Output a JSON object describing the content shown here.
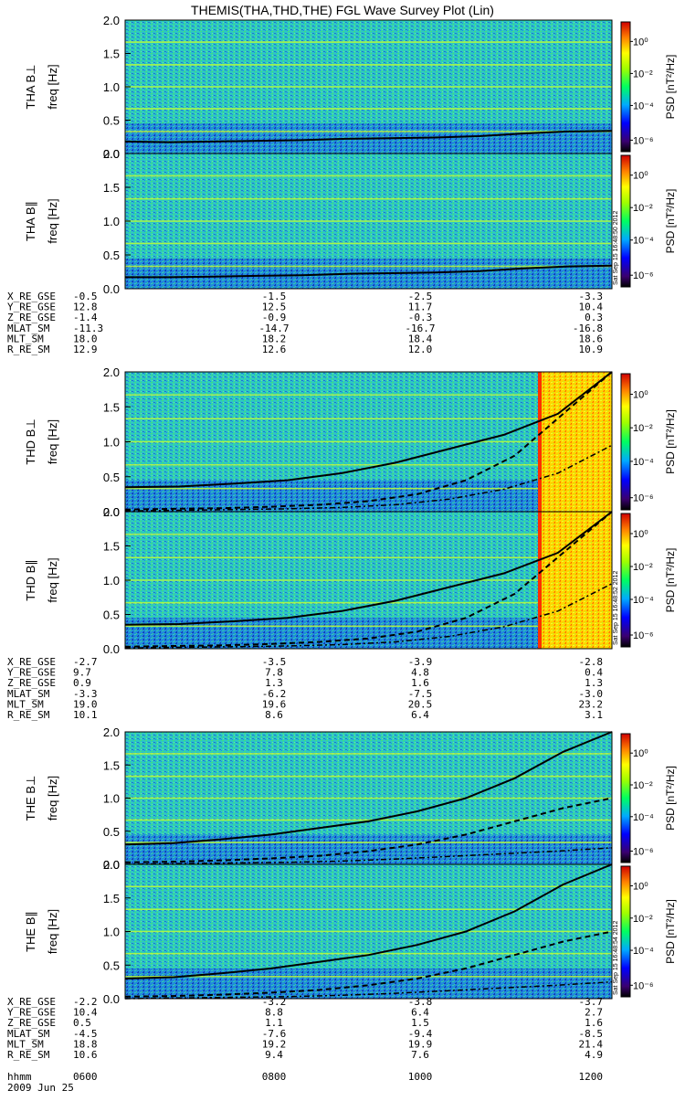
{
  "title": "THEMIS(THA,THD,THE) FGL Wave Survey Plot (Lin)",
  "date_label": "2009 Jun 25",
  "hhmm_label": "hhmm",
  "time_ticks": [
    "0600",
    "0800",
    "1000",
    "1200"
  ],
  "colorbar": {
    "label": "PSD [nT²/Hz]",
    "tick_labels": [
      "10⁰",
      "10⁻²",
      "10⁻⁴",
      "10⁻⁶"
    ]
  },
  "frequency_ticks": [
    "0.0",
    "0.5",
    "1.0",
    "1.5",
    "2.0"
  ],
  "chart_data": [
    {
      "type": "heatmap",
      "probe": "THA",
      "component": "perp",
      "ylabel": "THA B⊥",
      "yunit": "freq [Hz]",
      "ylim": [
        0,
        2.0
      ],
      "line_solid": [
        0.18,
        0.17,
        0.18,
        0.19,
        0.2,
        0.22,
        0.23,
        0.24,
        0.26,
        0.3,
        0.33,
        0.34
      ]
    },
    {
      "type": "heatmap",
      "probe": "THA",
      "component": "par",
      "ylabel": "THA B∥",
      "yunit": "freq [Hz]",
      "ylim": [
        0,
        2.0
      ],
      "timestamp": "Sat Sep 15 16:48:50 2012",
      "line_solid": [
        0.17,
        0.17,
        0.18,
        0.19,
        0.2,
        0.22,
        0.23,
        0.24,
        0.26,
        0.3,
        0.33,
        0.34
      ]
    },
    {
      "type": "heatmap",
      "probe": "THD",
      "component": "perp",
      "ylabel": "THD B⊥",
      "yunit": "freq [Hz]",
      "ylim": [
        0,
        2.0
      ],
      "line_solid": [
        0.35,
        0.36,
        0.4,
        0.45,
        0.55,
        0.7,
        0.9,
        1.1,
        1.4,
        2.1
      ],
      "line_dashed": [
        0.03,
        0.04,
        0.05,
        0.07,
        0.1,
        0.15,
        0.25,
        0.45,
        0.8,
        1.4,
        2.1
      ],
      "line_dotdash": [
        0.01,
        0.02,
        0.03,
        0.04,
        0.06,
        0.1,
        0.18,
        0.32,
        0.55,
        0.95
      ]
    },
    {
      "type": "heatmap",
      "probe": "THD",
      "component": "par",
      "ylabel": "THD B∥",
      "yunit": "freq [Hz]",
      "ylim": [
        0,
        2.0
      ],
      "timestamp": "Sat Sep 15 16:48:52 2012",
      "line_solid": [
        0.35,
        0.36,
        0.4,
        0.45,
        0.55,
        0.7,
        0.9,
        1.1,
        1.4,
        2.1
      ],
      "line_dashed": [
        0.03,
        0.04,
        0.05,
        0.07,
        0.1,
        0.15,
        0.25,
        0.45,
        0.8,
        1.4,
        2.1
      ],
      "line_dotdash": [
        0.01,
        0.02,
        0.03,
        0.04,
        0.06,
        0.1,
        0.18,
        0.32,
        0.55,
        0.95
      ]
    },
    {
      "type": "heatmap",
      "probe": "THE",
      "component": "perp",
      "ylabel": "THE B⊥",
      "yunit": "freq [Hz]",
      "ylim": [
        0,
        2.0
      ],
      "line_solid": [
        0.3,
        0.32,
        0.38,
        0.45,
        0.55,
        0.65,
        0.8,
        1.0,
        1.3,
        1.7,
        2.1
      ],
      "line_dashed": [
        0.03,
        0.04,
        0.06,
        0.09,
        0.13,
        0.2,
        0.3,
        0.45,
        0.65,
        0.85,
        1.0
      ],
      "line_dotdash": [
        0.0,
        0.01,
        0.02,
        0.03,
        0.05,
        0.08,
        0.12,
        0.16,
        0.2,
        0.25
      ]
    },
    {
      "type": "heatmap",
      "probe": "THE",
      "component": "par",
      "ylabel": "THE B∥",
      "yunit": "freq [Hz]",
      "ylim": [
        0,
        2.0
      ],
      "timestamp": "Sat Sep 15 16:48:54 2012",
      "line_solid": [
        0.3,
        0.32,
        0.38,
        0.45,
        0.55,
        0.65,
        0.8,
        1.0,
        1.3,
        1.7,
        2.1
      ],
      "line_dashed": [
        0.03,
        0.04,
        0.06,
        0.09,
        0.13,
        0.2,
        0.3,
        0.45,
        0.65,
        0.85,
        1.0
      ],
      "line_dotdash": [
        0.0,
        0.01,
        0.02,
        0.03,
        0.05,
        0.08,
        0.12,
        0.16,
        0.2,
        0.25
      ]
    }
  ],
  "orbit_tables": [
    {
      "probe": "THA",
      "rows": [
        {
          "label": "X_RE_GSE",
          "values": [
            "-0.5",
            "-1.5",
            "-2.5",
            "-3.3"
          ]
        },
        {
          "label": "Y_RE_GSE",
          "values": [
            "12.8",
            "12.5",
            "11.7",
            "10.4"
          ]
        },
        {
          "label": "Z_RE_GSE",
          "values": [
            "-1.4",
            "-0.9",
            "-0.3",
            "0.3"
          ]
        },
        {
          "label": "MLAT_SM",
          "values": [
            "-11.3",
            "-14.7",
            "-16.7",
            "-16.8"
          ]
        },
        {
          "label": "MLT_SM",
          "values": [
            "18.0",
            "18.2",
            "18.4",
            "18.6"
          ]
        },
        {
          "label": "R_RE_SM",
          "values": [
            "12.9",
            "12.6",
            "12.0",
            "10.9"
          ]
        }
      ]
    },
    {
      "probe": "THD",
      "rows": [
        {
          "label": "X_RE_GSE",
          "values": [
            "-2.7",
            "-3.5",
            "-3.9",
            "-2.8"
          ]
        },
        {
          "label": "Y_RE_GSE",
          "values": [
            "9.7",
            "7.8",
            "4.8",
            "0.4"
          ]
        },
        {
          "label": "Z_RE_GSE",
          "values": [
            "0.9",
            "1.3",
            "1.6",
            "1.3"
          ]
        },
        {
          "label": "MLAT_SM",
          "values": [
            "-3.3",
            "-6.2",
            "-7.5",
            "-3.0"
          ]
        },
        {
          "label": "MLT_SM",
          "values": [
            "19.0",
            "19.6",
            "20.5",
            "23.2"
          ]
        },
        {
          "label": "R_RE_SM",
          "values": [
            "10.1",
            "8.6",
            "6.4",
            "3.1"
          ]
        }
      ]
    },
    {
      "probe": "THE",
      "rows": [
        {
          "label": "X_RE_GSE",
          "values": [
            "-2.2",
            "-3.2",
            "-3.8",
            "-3.7"
          ]
        },
        {
          "label": "Y_RE_GSE",
          "values": [
            "10.4",
            "8.8",
            "6.4",
            "2.7"
          ]
        },
        {
          "label": "Z_RE_GSE",
          "values": [
            "0.5",
            "1.1",
            "1.5",
            "1.6"
          ]
        },
        {
          "label": "MLAT_SM",
          "values": [
            "-4.5",
            "-7.6",
            "-9.4",
            "-8.5"
          ]
        },
        {
          "label": "MLT_SM",
          "values": [
            "18.8",
            "19.2",
            "19.9",
            "21.4"
          ]
        },
        {
          "label": "R_RE_SM",
          "values": [
            "10.6",
            "9.4",
            "7.6",
            "4.9"
          ]
        }
      ]
    }
  ]
}
